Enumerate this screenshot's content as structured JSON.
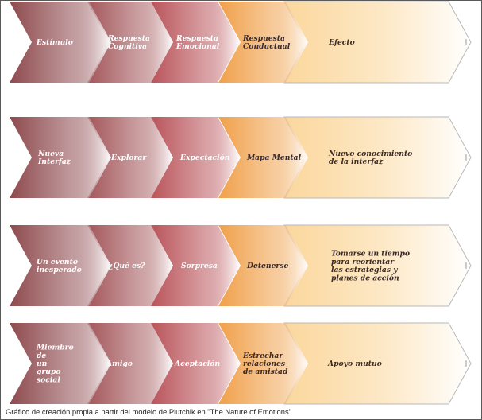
{
  "rows": [
    {
      "steps": [
        {
          "lines": [
            "Estímulo"
          ]
        },
        {
          "lines": [
            "Respuesta",
            "Cognitiva"
          ]
        },
        {
          "lines": [
            "Respuesta",
            "Emocional"
          ]
        },
        {
          "lines": [
            "Respuesta",
            "Conductual"
          ]
        },
        {
          "lines": [
            "Efecto"
          ]
        }
      ]
    },
    {
      "steps": [
        {
          "lines": [
            "Nueva",
            "Interfaz"
          ]
        },
        {
          "lines": [
            "Explorar"
          ]
        },
        {
          "lines": [
            "Expectación"
          ]
        },
        {
          "lines": [
            "Mapa Mental"
          ]
        },
        {
          "lines": [
            "Nuevo conocimiento",
            "de la interfaz"
          ]
        }
      ]
    },
    {
      "steps": [
        {
          "lines": [
            "Un evento",
            "inesperado"
          ]
        },
        {
          "lines": [
            "¿Qué es?"
          ]
        },
        {
          "lines": [
            "Sorpresa"
          ]
        },
        {
          "lines": [
            "Detenerse"
          ]
        },
        {
          "lines": [
            "Tomarse un tiempo",
            "para reorientar",
            "las estrategias y",
            "planes de acción"
          ]
        }
      ]
    },
    {
      "steps": [
        {
          "lines": [
            "Miembro",
            "de",
            "un",
            "grupo",
            "social"
          ]
        },
        {
          "lines": [
            "Amigo"
          ]
        },
        {
          "lines": [
            "Aceptación"
          ]
        },
        {
          "lines": [
            "Estrechar",
            "relaciones",
            "de amistad"
          ]
        },
        {
          "lines": [
            "Apoyo mutuo"
          ]
        }
      ]
    }
  ],
  "caption": "Gráfico de creación propia a partir del modelo de Plutchik en \"The Nature of Emotions\"",
  "colors": {
    "chevron1_dark": "#8e4a4e",
    "chevron2_dark": "#a3565a",
    "chevron3_dark": "#b9545a",
    "chevron4_dark": "#f0a04a",
    "chevron5_dark": "#fbd79c",
    "fade": "#ffffff",
    "outline": "#b8b8b8"
  }
}
